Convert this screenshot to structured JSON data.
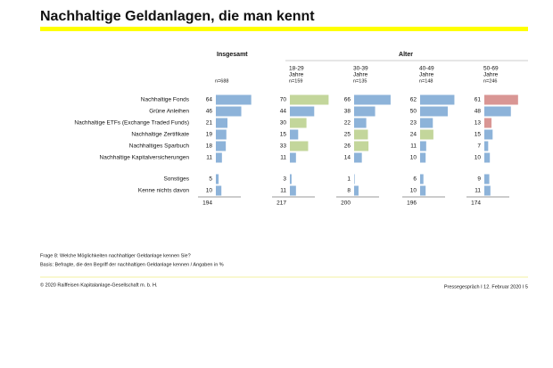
{
  "header": {
    "title": "Nachhaltige Geldanlagen, die man kennt",
    "group_total": "Insgesamt",
    "group_age": "Alter"
  },
  "table": {
    "rows": [
      "Nachhaltige Fonds",
      "Grüne Anleihen",
      "Nachhaltige ETFs (Exchange Traded Funds)",
      "Nachhaltige Zertifikate",
      "Nachhaltiges Sparbuch",
      "Nachhaltige Kapitalversicherungen",
      "Sonstiges",
      "Kenne nichts davon"
    ],
    "columns": [
      {
        "n": "n=688",
        "values": [
          64,
          46,
          21,
          19,
          18,
          11,
          5,
          10
        ],
        "total": 194,
        "colors": [
          "#8db3d9",
          "#8db3d9",
          "#8db3d9",
          "#8db3d9",
          "#8db3d9",
          "#8db3d9",
          "#8db3d9",
          "#8db3d9"
        ]
      },
      {
        "name": "18-29",
        "unit": "Jahre",
        "n": "n=159",
        "values": [
          70,
          44,
          30,
          15,
          33,
          11,
          3,
          11
        ],
        "total": 217,
        "colors": [
          "#c3d69b",
          "#8db3d9",
          "#c3d69b",
          "#8db3d9",
          "#c3d69b",
          "#8db3d9",
          "#8db3d9",
          "#8db3d9"
        ]
      },
      {
        "name": "30-39",
        "unit": "Jahre",
        "n": "n=135",
        "values": [
          66,
          38,
          22,
          25,
          26,
          14,
          1,
          8
        ],
        "total": 200,
        "colors": [
          "#8db3d9",
          "#8db3d9",
          "#8db3d9",
          "#c3d69b",
          "#c3d69b",
          "#8db3d9",
          "#8db3d9",
          "#8db3d9"
        ]
      },
      {
        "name": "40-49",
        "unit": "Jahre",
        "n": "n=148",
        "values": [
          62,
          50,
          23,
          24,
          11,
          10,
          6,
          10
        ],
        "total": 196,
        "colors": [
          "#8db3d9",
          "#8db3d9",
          "#8db3d9",
          "#c3d69b",
          "#8db3d9",
          "#8db3d9",
          "#8db3d9",
          "#8db3d9"
        ]
      },
      {
        "name": "50-69",
        "unit": "Jahre",
        "n": "n=246",
        "values": [
          61,
          48,
          13,
          15,
          7,
          10,
          9,
          11
        ],
        "total": 174,
        "colors": [
          "#d99694",
          "#8db3d9",
          "#d99694",
          "#8db3d9",
          "#8db3d9",
          "#8db3d9",
          "#8db3d9",
          "#8db3d9"
        ]
      }
    ]
  },
  "footer": {
    "question": "Frage 8: Welche Möglichkeiten nachhaltiger Geldanlage kennen Sie?",
    "basis": "Basis: Befragte, die den Begriff der nachhaltigen Geldanlage kennen / Angaben in %",
    "copyright": "© 2020 Raiffeisen Kapitalanlage-Gesellschaft m. b. H.",
    "event": "Pressegespräch I 12. Februar 2020 I 5"
  }
}
